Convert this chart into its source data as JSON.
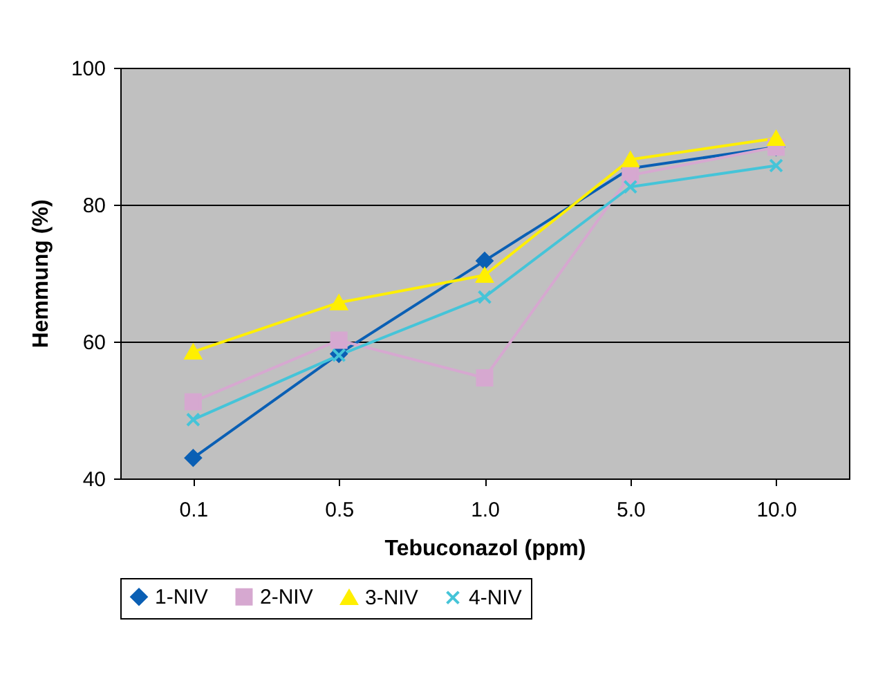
{
  "chart_data": {
    "type": "line",
    "xlabel": "Tebuconazol (ppm)",
    "ylabel": "Hemmung (%)",
    "categories": [
      "0.1",
      "0.5",
      "1.0",
      "5.0",
      "10.0"
    ],
    "series": [
      {
        "name": "1-NIV",
        "color": "#0a5fb4",
        "marker": "diamond",
        "values": [
          43,
          58.2,
          71.8,
          85.3,
          88.4
        ]
      },
      {
        "name": "2-NIV",
        "color": "#d6a8d0",
        "marker": "square",
        "values": [
          51.2,
          60.2,
          54.7,
          84.3,
          88.4
        ]
      },
      {
        "name": "3-NIV",
        "color": "#ffef00",
        "marker": "triangle",
        "values": [
          58.5,
          65.7,
          69.7,
          86.6,
          89.7
        ]
      },
      {
        "name": "4-NIV",
        "color": "#45c4d8",
        "marker": "cross",
        "values": [
          48.6,
          58,
          66.5,
          82.6,
          85.7
        ]
      }
    ],
    "ylim": [
      40,
      100
    ],
    "yticks": [
      40,
      60,
      80,
      100
    ],
    "grid": "y",
    "legend": "bottom",
    "line_style": "solid"
  }
}
